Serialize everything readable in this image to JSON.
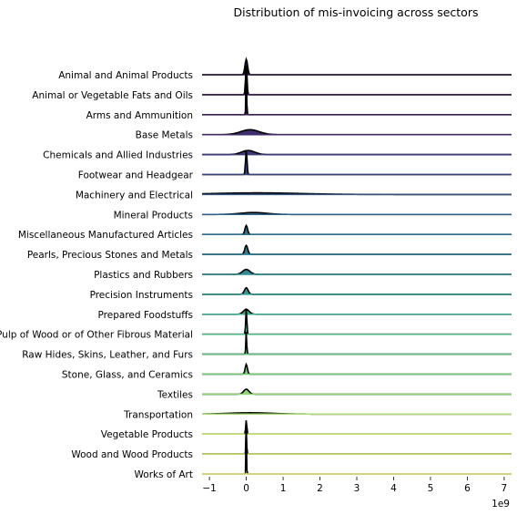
{
  "chart_data": {
    "type": "ridgeline",
    "title": "Distribution of mis-invoicing across sectors",
    "xlabel": "",
    "ylabel": "",
    "x_offset_label": "1e9",
    "xlim": [
      -1.2,
      7.2
    ],
    "x_ticks": [
      -1,
      0,
      1,
      2,
      3,
      4,
      5,
      6,
      7
    ],
    "x_tick_labels": [
      "−1",
      "0",
      "1",
      "2",
      "3",
      "4",
      "5",
      "6",
      "7"
    ],
    "grid": false,
    "legend": "none",
    "series": [
      {
        "name": "Animal and Animal Products",
        "color": "#2b1b3f",
        "peak_x": 0.0,
        "spread": 0.035,
        "height": 0.95
      },
      {
        "name": "Animal or Vegetable Fats and Oils",
        "color": "#3b2050",
        "peak_x": 0.0,
        "spread": 0.02,
        "height": 1.8
      },
      {
        "name": "Arms and Ammunition",
        "color": "#3c1f4f",
        "peak_x": 0.0,
        "spread": 0.01,
        "height": 3.0
      },
      {
        "name": "Base Metals",
        "color": "#3d2d6a",
        "peak_x": 0.1,
        "spread": 0.25,
        "height": 0.3
      },
      {
        "name": "Chemicals and Allied Industries",
        "color": "#3f3a77",
        "peak_x": 0.05,
        "spread": 0.18,
        "height": 0.25
      },
      {
        "name": "Footwear and Headgear",
        "color": "#39457e",
        "peak_x": 0.0,
        "spread": 0.02,
        "height": 1.5
      },
      {
        "name": "Machinery and Electrical",
        "color": "#345585",
        "peak_x": 0.3,
        "spread": 1.2,
        "height": 0.1
      },
      {
        "name": "Mineral Products",
        "color": "#316288",
        "peak_x": 0.2,
        "spread": 0.35,
        "height": 0.12
      },
      {
        "name": "Miscellaneous Manufactured Articles",
        "color": "#2f708c",
        "peak_x": 0.0,
        "spread": 0.035,
        "height": 0.55
      },
      {
        "name": "Pearls, Precious Stones and Metals",
        "color": "#2e7d8f",
        "peak_x": 0.0,
        "spread": 0.04,
        "height": 0.55
      },
      {
        "name": "Plastics and Rubbers",
        "color": "#2f8c90",
        "peak_x": 0.0,
        "spread": 0.1,
        "height": 0.3
      },
      {
        "name": "Precision Instruments",
        "color": "#34998f",
        "peak_x": 0.0,
        "spread": 0.05,
        "height": 0.4
      },
      {
        "name": "Prepared Foodstuffs",
        "color": "#3ea78c",
        "peak_x": 0.0,
        "spread": 0.08,
        "height": 0.3
      },
      {
        "name": "Pulp of Wood or of Other Fibrous Material",
        "color": "#4eb486",
        "peak_x": 0.0,
        "spread": 0.015,
        "height": 1.6
      },
      {
        "name": "Raw Hides, Skins, Leather, and Furs",
        "color": "#62c17f",
        "peak_x": 0.0,
        "spread": 0.012,
        "height": 1.4
      },
      {
        "name": "Stone, Glass, and Ceramics",
        "color": "#77cc79",
        "peak_x": 0.0,
        "spread": 0.03,
        "height": 0.6
      },
      {
        "name": "Textiles",
        "color": "#8fd673",
        "peak_x": 0.0,
        "spread": 0.07,
        "height": 0.3
      },
      {
        "name": "Transportation",
        "color": "#a8de6e",
        "peak_x": 0.1,
        "spread": 0.6,
        "height": 0.08
      },
      {
        "name": "Vegetable Products",
        "color": "#c1e46d",
        "peak_x": 0.0,
        "spread": 0.015,
        "height": 0.85
      },
      {
        "name": "Wood and Wood Products",
        "color": "#d8ea72",
        "peak_x": 0.0,
        "spread": 0.01,
        "height": 1.8
      },
      {
        "name": "Works of Art",
        "color": "#eeee80",
        "peak_x": 0.0,
        "spread": 0.008,
        "height": 3.0
      }
    ]
  }
}
